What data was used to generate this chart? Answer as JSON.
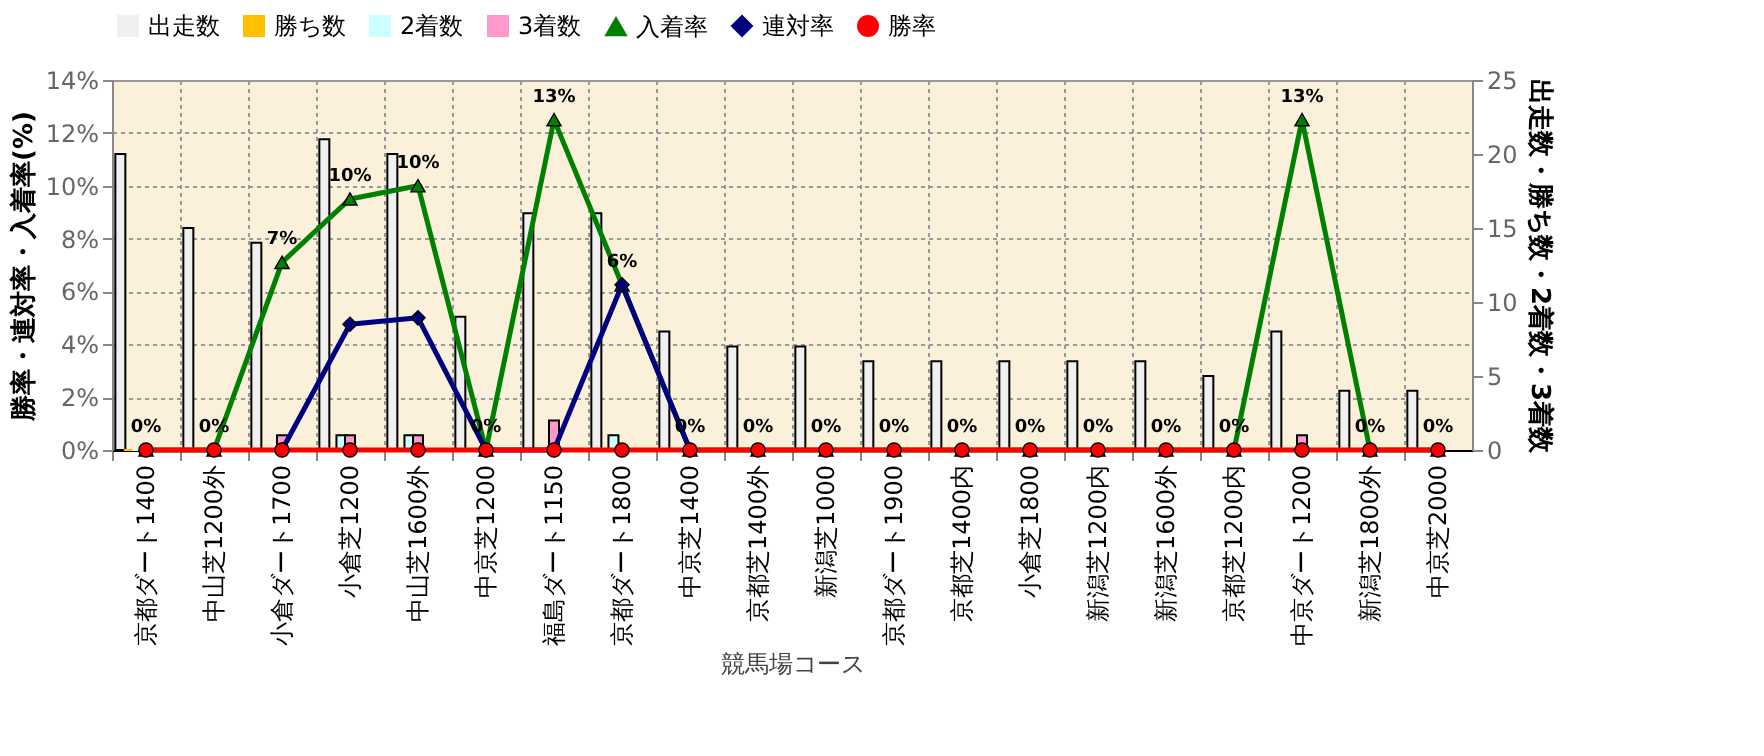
{
  "chart_data": {
    "type": "bar",
    "xlabel": "競馬場コース",
    "ylabel": "勝率・連対率・入着率(%)",
    "y2label": "出走数・勝ち数・2着数・3着数",
    "categories": [
      "京都ダート1400",
      "中山芝1200外",
      "小倉ダート1700",
      "小倉芝1200",
      "中山芝1600外",
      "中京芝1200",
      "福島ダート1150",
      "京都ダート1800",
      "中京芝1400",
      "京都芝1400外",
      "新潟芝1000",
      "京都ダート1900",
      "京都芝1400内",
      "小倉芝1800",
      "新潟芝1200内",
      "新潟芝1600外",
      "京都芝1200内",
      "中京ダート1200",
      "新潟芝1800外",
      "中京芝2000"
    ],
    "series": [
      {
        "name": "出走数",
        "axis": "y2",
        "color": "#f0f0f0",
        "values": [
          20,
          15,
          14,
          21,
          20,
          9,
          16,
          16,
          8,
          7,
          7,
          6,
          6,
          6,
          6,
          6,
          5,
          8,
          4,
          4
        ]
      },
      {
        "name": "勝ち数",
        "axis": "y2",
        "color": "#ffc000",
        "values": [
          0,
          0,
          0,
          0,
          0,
          0,
          0,
          0,
          0,
          0,
          0,
          0,
          0,
          0,
          0,
          0,
          0,
          0,
          0,
          0
        ]
      },
      {
        "name": "2着数",
        "axis": "y2",
        "color": "#ccffff",
        "values": [
          0,
          0,
          0,
          1,
          1,
          0,
          0,
          1,
          0,
          0,
          0,
          0,
          0,
          0,
          0,
          0,
          0,
          0,
          0,
          0
        ]
      },
      {
        "name": "3着数",
        "axis": "y2",
        "color": "#ff99cc",
        "values": [
          0,
          0,
          1,
          1,
          1,
          0,
          2,
          0,
          0,
          0,
          0,
          0,
          0,
          0,
          0,
          0,
          0,
          1,
          0,
          0
        ]
      },
      {
        "name": "入着率",
        "type": "line",
        "marker": "triangle",
        "color": "#008000",
        "values": [
          0,
          0,
          7.1,
          9.5,
          10,
          0,
          12.5,
          6.25,
          0,
          0,
          0,
          0,
          0,
          0,
          0,
          0,
          0,
          12.5,
          0,
          0
        ],
        "value_labels": [
          "0%",
          "0%",
          "7%",
          "10%",
          "10%",
          "0%",
          "13%",
          "6%",
          "0%",
          "0%",
          "0%",
          "0%",
          "0%",
          "0%",
          "0%",
          "0%",
          "0%",
          "13%",
          "0%",
          "0%"
        ]
      },
      {
        "name": "連対率",
        "type": "line",
        "marker": "diamond",
        "color": "#000080",
        "values": [
          null,
          null,
          0,
          4.76,
          5,
          0,
          0,
          6.25,
          0,
          null,
          null,
          null,
          null,
          null,
          null,
          null,
          null,
          null,
          null,
          null
        ]
      },
      {
        "name": "勝率",
        "type": "line",
        "marker": "circle",
        "color": "#ff0000",
        "values": [
          0,
          0,
          0,
          0,
          0,
          0,
          0,
          0,
          0,
          0,
          0,
          0,
          0,
          0,
          0,
          0,
          0,
          0,
          0,
          0
        ]
      }
    ],
    "ylim": [
      0,
      14
    ],
    "yticks": [
      {
        "value": 0,
        "label": "0%"
      },
      {
        "value": 2,
        "label": "2%"
      },
      {
        "value": 4,
        "label": "4%"
      },
      {
        "value": 6,
        "label": "6%"
      },
      {
        "value": 8,
        "label": "8%"
      },
      {
        "value": 10,
        "label": "10%"
      },
      {
        "value": 12,
        "label": "12%"
      },
      {
        "value": 14,
        "label": "14%"
      }
    ],
    "y2lim": [
      0,
      25
    ],
    "y2ticks": [
      0,
      5,
      10,
      15,
      20,
      25
    ],
    "grid": true,
    "legend": "top"
  }
}
